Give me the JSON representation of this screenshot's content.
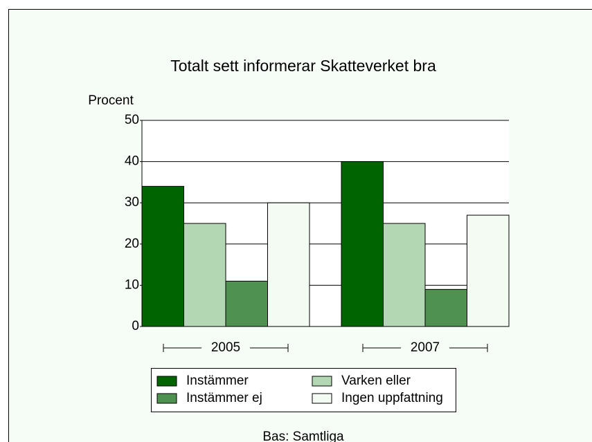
{
  "chart_data": {
    "type": "bar",
    "title": "Totalt sett informerar Skatteverket bra",
    "y_label": "Procent",
    "categories": [
      "2005",
      "2007"
    ],
    "series": [
      {
        "name": "Instämmer",
        "color": "#006400",
        "values": [
          34,
          40
        ]
      },
      {
        "name": "Varken eller",
        "color": "#b3d6b3",
        "values": [
          25,
          25
        ]
      },
      {
        "name": "Instämmer ej",
        "color": "#4e9150",
        "values": [
          11,
          9
        ]
      },
      {
        "name": "Ingen uppfattning",
        "color": "#f3fbf3",
        "values": [
          30,
          27
        ]
      }
    ],
    "ylim": [
      0,
      50
    ],
    "yticks": [
      0,
      10,
      20,
      30,
      40,
      50
    ],
    "grid": true,
    "footnote": "Bas: Samtliga"
  }
}
